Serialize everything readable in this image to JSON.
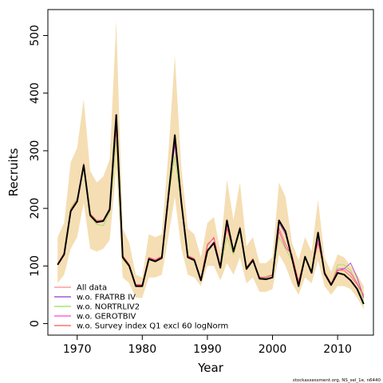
{
  "chart_data": {
    "type": "line",
    "xlabel": "Year",
    "ylabel": "Recruits",
    "xlim": [
      1965.5,
      2015.5
    ],
    "ylim": [
      -20,
      545
    ],
    "xticks": [
      1970,
      1980,
      1990,
      2000,
      2010
    ],
    "yticks": [
      0,
      100,
      200,
      300,
      400,
      500
    ],
    "grid": false,
    "legend_position": "bottom-left",
    "band_color": "#f5deb3",
    "x": [
      1967,
      1968,
      1969,
      1970,
      1971,
      1972,
      1973,
      1974,
      1975,
      1976,
      1977,
      1978,
      1979,
      1980,
      1981,
      1982,
      1983,
      1984,
      1985,
      1986,
      1987,
      1988,
      1989,
      1990,
      1991,
      1992,
      1993,
      1994,
      1995,
      1996,
      1997,
      1998,
      1999,
      2000,
      2001,
      2002,
      2003,
      2004,
      2005,
      2006,
      2007,
      2008,
      2009,
      2010,
      2011,
      2012,
      2013,
      2014
    ],
    "band_upper": [
      150,
      175,
      280,
      305,
      390,
      265,
      245,
      255,
      285,
      525,
      165,
      140,
      85,
      80,
      155,
      150,
      155,
      295,
      465,
      270,
      165,
      155,
      115,
      175,
      185,
      125,
      250,
      180,
      245,
      135,
      150,
      105,
      105,
      115,
      245,
      220,
      140,
      110,
      150,
      125,
      215,
      115,
      90,
      120,
      115,
      100,
      85,
      65
    ],
    "band_lower": [
      70,
      85,
      130,
      150,
      210,
      130,
      125,
      130,
      145,
      270,
      80,
      70,
      45,
      45,
      80,
      80,
      85,
      150,
      220,
      130,
      85,
      80,
      65,
      100,
      100,
      75,
      105,
      85,
      115,
      70,
      80,
      55,
      55,
      60,
      120,
      100,
      70,
      50,
      80,
      70,
      110,
      65,
      50,
      65,
      65,
      60,
      45,
      25
    ],
    "series": [
      {
        "name": "All data",
        "color": "#000000",
        "width": 2,
        "values": [
          102,
          120,
          195,
          212,
          275,
          188,
          176,
          178,
          198,
          362,
          115,
          100,
          65,
          65,
          112,
          108,
          114,
          220,
          327,
          210,
          115,
          110,
          75,
          126,
          140,
          97,
          179,
          125,
          165,
          95,
          110,
          78,
          77,
          80,
          179,
          160,
          113,
          65,
          116,
          88,
          158,
          87,
          67,
          88,
          85,
          75,
          60,
          34
        ]
      },
      {
        "name": "w.o. FRATRB IV",
        "color": "#9933cc",
        "width": 0.8,
        "values": [
          103,
          121,
          196,
          213,
          276,
          189,
          177,
          178,
          199,
          350,
          116,
          101,
          66,
          66,
          113,
          109,
          115,
          222,
          310,
          212,
          116,
          111,
          76,
          128,
          142,
          98,
          175,
          126,
          167,
          96,
          111,
          79,
          78,
          81,
          175,
          155,
          114,
          66,
          115,
          89,
          156,
          88,
          68,
          92,
          95,
          105,
          80,
          45
        ]
      },
      {
        "name": "w.o. NORTRLIV2",
        "color": "#99dd55",
        "width": 0.8,
        "values": [
          104,
          122,
          200,
          218,
          270,
          186,
          172,
          170,
          193,
          320,
          112,
          98,
          64,
          64,
          110,
          107,
          112,
          218,
          290,
          208,
          114,
          108,
          74,
          130,
          138,
          96,
          150,
          120,
          160,
          93,
          108,
          77,
          82,
          85,
          150,
          130,
          110,
          70,
          118,
          92,
          150,
          85,
          66,
          102,
          102,
          92,
          70,
          40
        ]
      },
      {
        "name": "w.o. GEROTBIV",
        "color": "#ff44cc",
        "width": 0.8,
        "values": [
          103,
          121,
          197,
          214,
          277,
          190,
          178,
          179,
          200,
          340,
          117,
          102,
          67,
          67,
          114,
          110,
          116,
          225,
          315,
          213,
          117,
          112,
          77,
          135,
          150,
          99,
          170,
          125,
          168,
          97,
          112,
          80,
          80,
          84,
          160,
          132,
          120,
          72,
          115,
          90,
          145,
          89,
          69,
          95,
          96,
          88,
          70,
          48
        ]
      },
      {
        "name": "w.o. Survey index Q1 excl 60 logNorm",
        "color": "#ff5555",
        "width": 0.8,
        "values": [
          104,
          123,
          198,
          215,
          278,
          191,
          179,
          180,
          201,
          335,
          118,
          103,
          68,
          68,
          115,
          111,
          117,
          228,
          318,
          214,
          118,
          113,
          78,
          138,
          148,
          100,
          165,
          124,
          166,
          98,
          113,
          81,
          80,
          85,
          165,
          138,
          118,
          74,
          117,
          91,
          140,
          90,
          70,
          93,
          92,
          82,
          68,
          50
        ]
      }
    ],
    "caption": "stockassessment.org, NS_sel_1e, n6440"
  }
}
